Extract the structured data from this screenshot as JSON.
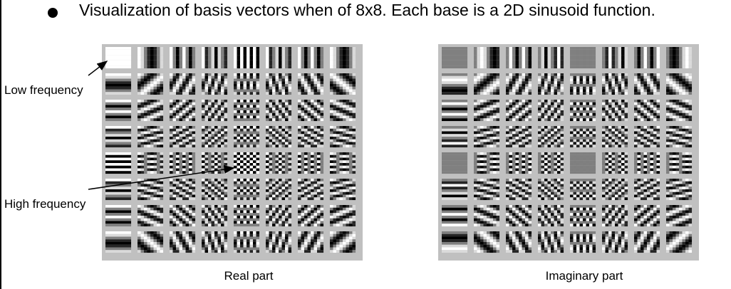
{
  "bullet_text": "Visualization of basis vectors when of 8x8. Each base is a 2D sinusoid function.",
  "annotations": {
    "low_frequency": "Low frequency",
    "high_frequency": "High frequency"
  },
  "panels": [
    {
      "caption": "Real part",
      "part": "real"
    },
    {
      "caption": "Imaginary part",
      "part": "imag"
    }
  ],
  "grid": {
    "rows": 8,
    "cols": 8,
    "pixels_per_tile": 8
  },
  "colors": {
    "panel_background": "#c0c0c0"
  }
}
